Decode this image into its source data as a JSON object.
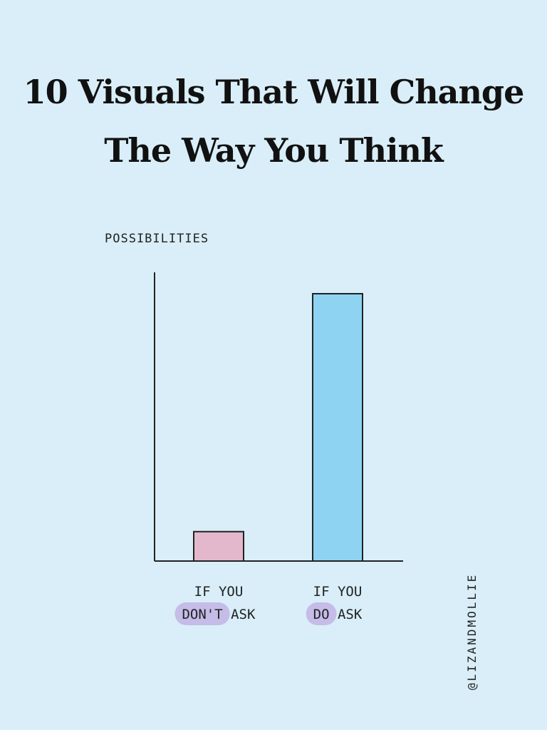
{
  "header": {
    "title_line1": "10 Visuals That Will Change",
    "title_line2": "The Way You Think"
  },
  "chart_data": {
    "type": "bar",
    "ylabel": "POSSIBILITIES",
    "xlabel": "",
    "ylim": [
      0,
      100
    ],
    "grid": false,
    "legend": "none",
    "categories": [
      {
        "line1": "IF YOU",
        "highlight": "DON'T",
        "rest": " ASK",
        "fill": "#e4b8cc"
      },
      {
        "line1": "IF YOU",
        "highlight": "DO",
        "rest": " ASK",
        "fill": "#8fd3f2"
      }
    ],
    "values": [
      11,
      100
    ]
  },
  "credit": {
    "handle": "@LIZANDMOLLIE"
  },
  "colors": {
    "background": "#d9eef8",
    "highlight": "#c5bce8",
    "ink": "#222222"
  }
}
